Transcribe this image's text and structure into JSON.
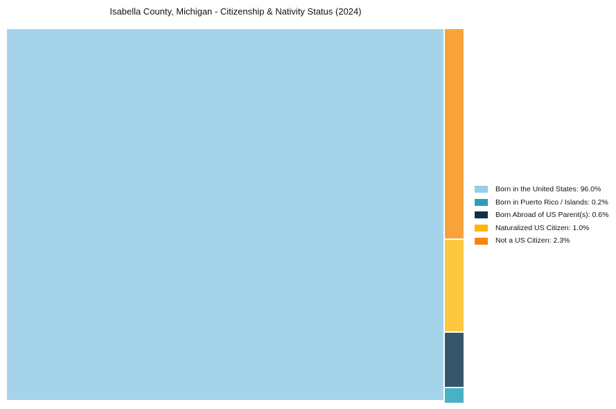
{
  "title": "Isabella County, Michigan - Citizenship & Nativity Status (2024)",
  "chart_data": {
    "type": "treemap",
    "title": "Isabella County, Michigan - Citizenship & Nativity Status (2024)",
    "categories": [
      "Born in the United States",
      "Born in Puerto Rico / Islands",
      "Born Abroad of US Parent(s)",
      "Naturalized US Citizen",
      "Not a US Citizen"
    ],
    "values": [
      96.0,
      0.2,
      0.6,
      1.0,
      2.3
    ],
    "unit": "%",
    "legend_position": "right",
    "layout_hint": "large tile left = Born in the United States; right column top-to-bottom = Not a US Citizen, Naturalized US Citizen, Born Abroad of US Parent(s), Born in Puerto Rico / Islands",
    "tile_colors": {
      "born_us": "#A5D4EA",
      "born_pr": "#48B1C5",
      "born_abroad": "#35566B",
      "naturalized": "#FDC840",
      "not_citizen": "#F9A23A"
    },
    "legend_colors": {
      "born_us": "#97CDE7",
      "born_pr": "#2A9DB9",
      "born_abroad": "#0E3249",
      "naturalized": "#FFB605",
      "not_citizen": "#F8830D"
    }
  },
  "legend": {
    "items": [
      {
        "label": "Born in the United States: 96.0%",
        "color": "#97CDE7"
      },
      {
        "label": "Born in Puerto Rico / Islands: 0.2%",
        "color": "#2A9DB9"
      },
      {
        "label": "Born Abroad of US Parent(s): 0.6%",
        "color": "#0E3249"
      },
      {
        "label": "Naturalized US Citizen: 1.0%",
        "color": "#FFB605"
      },
      {
        "label": "Not a US Citizen: 2.3%",
        "color": "#F8830D"
      }
    ]
  }
}
